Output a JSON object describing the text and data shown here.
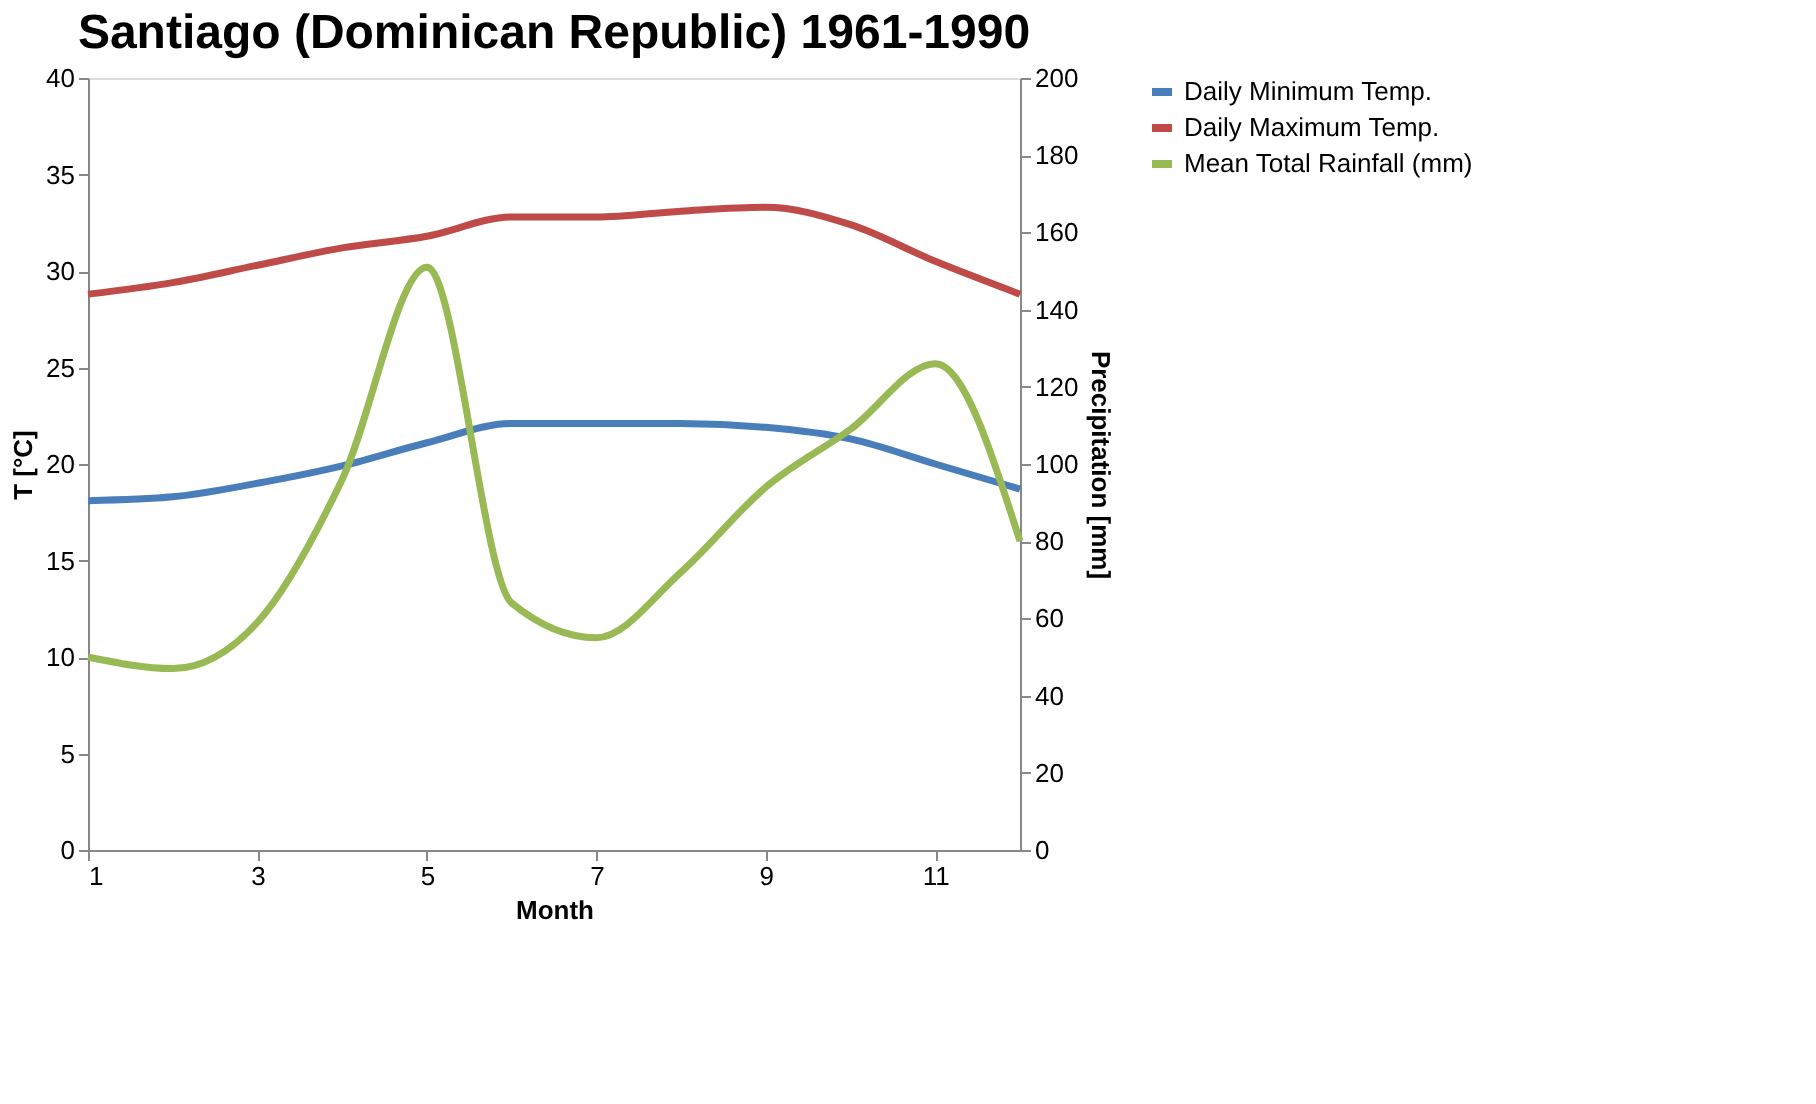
{
  "chart_data": {
    "type": "line",
    "title": "Santiago (Dominican Republic) 1961-1990",
    "xlabel": "Month",
    "ylabel": "T [°C]",
    "y2label": "Precipitation [mm]",
    "x": [
      1,
      2,
      3,
      4,
      5,
      6,
      7,
      8,
      9,
      10,
      11,
      12
    ],
    "series": [
      {
        "name": "Daily Minimum Temp.",
        "color": "#4a7ebb",
        "values": [
          18.1,
          18.3,
          19.0,
          19.9,
          21.1,
          22.1,
          22.1,
          22.1,
          21.9,
          21.3,
          20.0,
          18.7
        ]
      },
      {
        "name": "Daily Maximum Temp.",
        "color": "#be4b48",
        "values": [
          28.8,
          29.4,
          30.3,
          31.2,
          31.8,
          32.8,
          32.8,
          33.1,
          33.3,
          32.4,
          30.5,
          28.8
        ]
      },
      {
        "name": "Mean Total Rainfall (mm)",
        "color": "#98b954",
        "axis": "y2",
        "values": [
          50,
          47,
          59,
          96,
          151,
          64,
          55,
          72,
          94,
          109,
          126,
          80
        ]
      }
    ],
    "xlim": [
      1,
      12
    ],
    "xticks": [
      1,
      3,
      5,
      7,
      9,
      11
    ],
    "ylim": [
      0,
      40
    ],
    "yticks": [
      0,
      5,
      10,
      15,
      20,
      25,
      30,
      35,
      40
    ],
    "y2lim": [
      0,
      200
    ],
    "y2ticks": [
      0,
      20,
      40,
      60,
      80,
      100,
      120,
      140,
      160,
      180,
      200
    ],
    "grid": false,
    "legend": "right",
    "marker": "none",
    "line_style": "solid"
  }
}
